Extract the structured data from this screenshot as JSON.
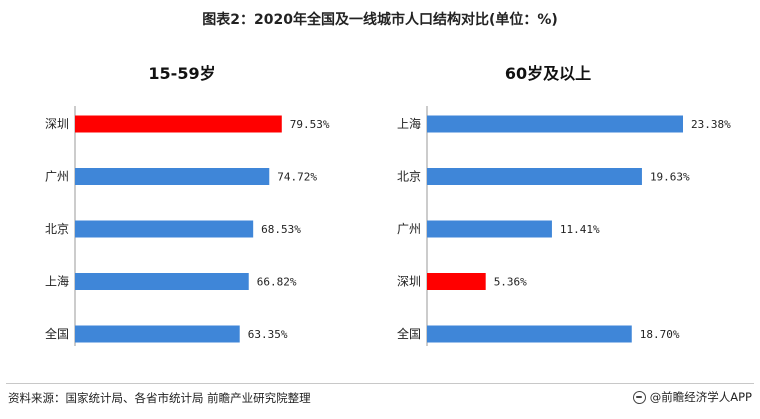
{
  "title": "图表2：2020年全国及一线城市人口结构对比(单位：%)",
  "source": "资料来源：国家统计局、各省市统计局 前瞻产业研究院整理",
  "brand": "@前瞻经济学人APP",
  "colors": {
    "default_bar": "#3f86d8",
    "highlight_bar": "#ff0000",
    "axis": "#9a9a9a"
  },
  "chart_data": [
    {
      "type": "bar",
      "orientation": "horizontal",
      "title": "15-59岁",
      "categories": [
        "深圳",
        "广州",
        "北京",
        "上海",
        "全国"
      ],
      "values": [
        79.53,
        74.72,
        68.53,
        66.82,
        63.35
      ],
      "labels": [
        "79.53%",
        "74.72%",
        "68.53%",
        "66.82%",
        "63.35%"
      ],
      "highlight": "深圳",
      "xlim": [
        0,
        100
      ]
    },
    {
      "type": "bar",
      "orientation": "horizontal",
      "title": "60岁及以上",
      "categories": [
        "上海",
        "北京",
        "广州",
        "深圳",
        "全国"
      ],
      "values": [
        23.38,
        19.63,
        11.41,
        5.36,
        18.7
      ],
      "labels": [
        "23.38%",
        "19.63%",
        "11.41%",
        "5.36%",
        "18.70%"
      ],
      "highlight": "深圳",
      "xlim": [
        0,
        25
      ]
    }
  ]
}
